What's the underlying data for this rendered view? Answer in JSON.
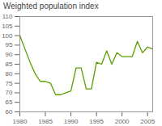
{
  "chart_data": {
    "type": "line",
    "title": "Weighted population index",
    "x": [
      1980,
      1981,
      1982,
      1983,
      1984,
      1985,
      1986,
      1987,
      1988,
      1989,
      1990,
      1991,
      1992,
      1993,
      1994,
      1995,
      1996,
      1997,
      1998,
      1999,
      2000,
      2001,
      2002,
      2003,
      2004,
      2005,
      2006
    ],
    "values": [
      100,
      93,
      86,
      80,
      76,
      76,
      75,
      69,
      69,
      70,
      71,
      83,
      83,
      72,
      72,
      86,
      85,
      92,
      85,
      91,
      89,
      89,
      89,
      97,
      91,
      94,
      93
    ],
    "color": "#5a9e00",
    "xlim": [
      1980,
      2006
    ],
    "ylim": [
      60,
      110
    ],
    "xticks": [
      1980,
      1985,
      1990,
      1995,
      2000,
      2005
    ],
    "yticks": [
      60,
      65,
      70,
      75,
      80,
      85,
      90,
      95,
      100,
      105,
      110
    ],
    "grid": false
  }
}
